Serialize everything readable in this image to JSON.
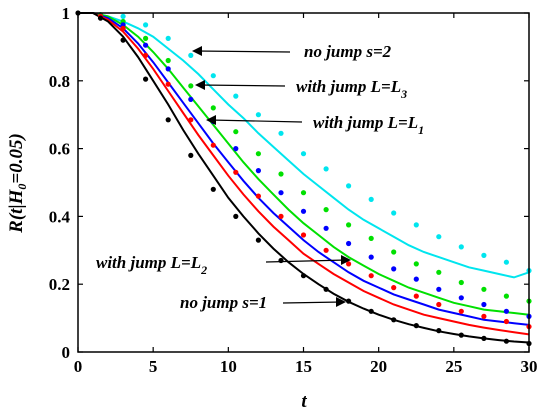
{
  "chart_data": {
    "type": "line",
    "xlabel": "t",
    "ylabel": "R(t|H0=0.05)",
    "ylabel_parts": {
      "main": "R(t|H",
      "sub": "0",
      "rest": "=0.05)"
    },
    "xlim": [
      0,
      30
    ],
    "ylim": [
      0,
      1
    ],
    "xticks": [
      "0",
      "5",
      "10",
      "15",
      "20",
      "25",
      "30"
    ],
    "yticks": [
      "0",
      "0.2",
      "0.4",
      "0.6",
      "0.8",
      "1"
    ],
    "grid": false,
    "series": [
      {
        "color": "#00e5ee",
        "line": [
          [
            0,
            1
          ],
          [
            1,
            1
          ],
          [
            2,
            0.99
          ],
          [
            3,
            0.975
          ],
          [
            4,
            0.955
          ],
          [
            5,
            0.93
          ],
          [
            6,
            0.895
          ],
          [
            7,
            0.86
          ],
          [
            8,
            0.82
          ],
          [
            9,
            0.775
          ],
          [
            10,
            0.73
          ],
          [
            11,
            0.69
          ],
          [
            12,
            0.645
          ],
          [
            13,
            0.605
          ],
          [
            14,
            0.565
          ],
          [
            15,
            0.525
          ],
          [
            16,
            0.49
          ],
          [
            17,
            0.455
          ],
          [
            18,
            0.42
          ],
          [
            19,
            0.39
          ],
          [
            20,
            0.365
          ],
          [
            21,
            0.34
          ],
          [
            22,
            0.315
          ],
          [
            23,
            0.295
          ],
          [
            24,
            0.28
          ],
          [
            25,
            0.265
          ],
          [
            26,
            0.25
          ],
          [
            27,
            0.24
          ],
          [
            28,
            0.23
          ],
          [
            29,
            0.22
          ],
          [
            30,
            0.235
          ]
        ],
        "points": [
          [
            1.5,
            0.995
          ],
          [
            3,
            0.99
          ],
          [
            4.5,
            0.965
          ],
          [
            6,
            0.925
          ],
          [
            7.5,
            0.875
          ],
          [
            9,
            0.815
          ],
          [
            10.5,
            0.755
          ],
          [
            12,
            0.7
          ],
          [
            13.5,
            0.645
          ],
          [
            15,
            0.585
          ],
          [
            16.5,
            0.54
          ],
          [
            18,
            0.49
          ],
          [
            19.5,
            0.45
          ],
          [
            21,
            0.41
          ],
          [
            22.5,
            0.375
          ],
          [
            24,
            0.34
          ],
          [
            25.5,
            0.31
          ],
          [
            27,
            0.285
          ],
          [
            28.5,
            0.265
          ],
          [
            30,
            0.24
          ]
        ]
      },
      {
        "color": "#00e000",
        "line": [
          [
            0,
            1
          ],
          [
            1,
            1
          ],
          [
            2,
            0.99
          ],
          [
            3,
            0.965
          ],
          [
            4,
            0.93
          ],
          [
            5,
            0.885
          ],
          [
            6,
            0.835
          ],
          [
            7,
            0.78
          ],
          [
            8,
            0.725
          ],
          [
            9,
            0.67
          ],
          [
            10,
            0.615
          ],
          [
            11,
            0.56
          ],
          [
            12,
            0.51
          ],
          [
            13,
            0.465
          ],
          [
            14,
            0.42
          ],
          [
            15,
            0.38
          ],
          [
            16,
            0.345
          ],
          [
            17,
            0.31
          ],
          [
            18,
            0.28
          ],
          [
            19,
            0.255
          ],
          [
            20,
            0.23
          ],
          [
            21,
            0.21
          ],
          [
            22,
            0.19
          ],
          [
            23,
            0.175
          ],
          [
            24,
            0.16
          ],
          [
            25,
            0.145
          ],
          [
            26,
            0.135
          ],
          [
            27,
            0.125
          ],
          [
            28,
            0.12
          ],
          [
            29,
            0.115
          ],
          [
            30,
            0.11
          ]
        ],
        "points": [
          [
            1.5,
            0.995
          ],
          [
            3,
            0.975
          ],
          [
            4.5,
            0.925
          ],
          [
            6,
            0.86
          ],
          [
            7.5,
            0.785
          ],
          [
            9,
            0.72
          ],
          [
            10.5,
            0.65
          ],
          [
            12,
            0.585
          ],
          [
            13.5,
            0.525
          ],
          [
            15,
            0.47
          ],
          [
            16.5,
            0.42
          ],
          [
            18,
            0.375
          ],
          [
            19.5,
            0.335
          ],
          [
            21,
            0.295
          ],
          [
            22.5,
            0.26
          ],
          [
            24,
            0.235
          ],
          [
            25.5,
            0.205
          ],
          [
            27,
            0.185
          ],
          [
            28.5,
            0.165
          ],
          [
            30,
            0.15
          ]
        ]
      },
      {
        "color": "#0000ff",
        "line": [
          [
            0,
            1
          ],
          [
            1,
            1
          ],
          [
            2,
            0.985
          ],
          [
            3,
            0.955
          ],
          [
            4,
            0.91
          ],
          [
            5,
            0.855
          ],
          [
            6,
            0.795
          ],
          [
            7,
            0.735
          ],
          [
            8,
            0.675
          ],
          [
            9,
            0.615
          ],
          [
            10,
            0.56
          ],
          [
            11,
            0.505
          ],
          [
            12,
            0.455
          ],
          [
            13,
            0.41
          ],
          [
            14,
            0.37
          ],
          [
            15,
            0.33
          ],
          [
            16,
            0.295
          ],
          [
            17,
            0.265
          ],
          [
            18,
            0.235
          ],
          [
            19,
            0.21
          ],
          [
            20,
            0.19
          ],
          [
            21,
            0.17
          ],
          [
            22,
            0.155
          ],
          [
            23,
            0.14
          ],
          [
            24,
            0.125
          ],
          [
            25,
            0.115
          ],
          [
            26,
            0.105
          ],
          [
            27,
            0.095
          ],
          [
            28,
            0.09
          ],
          [
            29,
            0.085
          ],
          [
            30,
            0.08
          ]
        ],
        "points": [
          [
            1.5,
            0.99
          ],
          [
            3,
            0.965
          ],
          [
            4.5,
            0.905
          ],
          [
            6,
            0.835
          ],
          [
            7.5,
            0.745
          ],
          [
            9,
            0.68
          ],
          [
            10.5,
            0.6
          ],
          [
            12,
            0.535
          ],
          [
            13.5,
            0.47
          ],
          [
            15,
            0.415
          ],
          [
            16.5,
            0.365
          ],
          [
            18,
            0.32
          ],
          [
            19.5,
            0.28
          ],
          [
            21,
            0.245
          ],
          [
            22.5,
            0.215
          ],
          [
            24,
            0.185
          ],
          [
            25.5,
            0.16
          ],
          [
            27,
            0.14
          ],
          [
            28.5,
            0.12
          ],
          [
            30,
            0.105
          ]
        ]
      },
      {
        "color": "#ff0000",
        "line": [
          [
            0,
            1
          ],
          [
            1,
            1
          ],
          [
            2,
            0.98
          ],
          [
            3,
            0.945
          ],
          [
            4,
            0.895
          ],
          [
            5,
            0.835
          ],
          [
            6,
            0.77
          ],
          [
            7,
            0.705
          ],
          [
            8,
            0.64
          ],
          [
            9,
            0.58
          ],
          [
            10,
            0.52
          ],
          [
            11,
            0.465
          ],
          [
            12,
            0.415
          ],
          [
            13,
            0.37
          ],
          [
            14,
            0.33
          ],
          [
            15,
            0.29
          ],
          [
            16,
            0.26
          ],
          [
            17,
            0.23
          ],
          [
            18,
            0.205
          ],
          [
            19,
            0.18
          ],
          [
            20,
            0.16
          ],
          [
            21,
            0.14
          ],
          [
            22,
            0.125
          ],
          [
            23,
            0.11
          ],
          [
            24,
            0.1
          ],
          [
            25,
            0.09
          ],
          [
            26,
            0.08
          ],
          [
            27,
            0.072
          ],
          [
            28,
            0.065
          ],
          [
            29,
            0.058
          ],
          [
            30,
            0.052
          ]
        ],
        "points": [
          [
            1.5,
            0.99
          ],
          [
            3,
            0.955
          ],
          [
            4.5,
            0.875
          ],
          [
            6,
            0.79
          ],
          [
            7.5,
            0.685
          ],
          [
            9,
            0.61
          ],
          [
            10.5,
            0.53
          ],
          [
            12,
            0.46
          ],
          [
            13.5,
            0.4
          ],
          [
            15,
            0.345
          ],
          [
            16.5,
            0.3
          ],
          [
            18,
            0.26
          ],
          [
            19.5,
            0.225
          ],
          [
            21,
            0.19
          ],
          [
            22.5,
            0.165
          ],
          [
            24,
            0.14
          ],
          [
            25.5,
            0.12
          ],
          [
            27,
            0.105
          ],
          [
            28.5,
            0.09
          ],
          [
            30,
            0.075
          ]
        ]
      },
      {
        "color": "#000000",
        "line": [
          [
            0,
            1
          ],
          [
            1,
            1
          ],
          [
            2,
            0.975
          ],
          [
            3,
            0.93
          ],
          [
            4,
            0.87
          ],
          [
            5,
            0.8
          ],
          [
            6,
            0.73
          ],
          [
            7,
            0.655
          ],
          [
            8,
            0.585
          ],
          [
            9,
            0.52
          ],
          [
            10,
            0.455
          ],
          [
            11,
            0.4
          ],
          [
            12,
            0.35
          ],
          [
            13,
            0.305
          ],
          [
            14,
            0.265
          ],
          [
            15,
            0.23
          ],
          [
            16,
            0.2
          ],
          [
            17,
            0.172
          ],
          [
            18,
            0.148
          ],
          [
            19,
            0.128
          ],
          [
            20,
            0.11
          ],
          [
            21,
            0.095
          ],
          [
            22,
            0.082
          ],
          [
            23,
            0.071
          ],
          [
            24,
            0.061
          ],
          [
            25,
            0.053
          ],
          [
            26,
            0.046
          ],
          [
            27,
            0.04
          ],
          [
            28,
            0.035
          ],
          [
            29,
            0.031
          ],
          [
            30,
            0.028
          ]
        ],
        "points": [
          [
            0,
            1
          ],
          [
            1.5,
            0.985
          ],
          [
            3,
            0.92
          ],
          [
            4.5,
            0.805
          ],
          [
            6,
            0.685
          ],
          [
            7.5,
            0.58
          ],
          [
            9,
            0.48
          ],
          [
            10.5,
            0.4
          ],
          [
            12,
            0.33
          ],
          [
            13.5,
            0.27
          ],
          [
            15,
            0.225
          ],
          [
            16.5,
            0.185
          ],
          [
            18,
            0.15
          ],
          [
            19.5,
            0.12
          ],
          [
            21,
            0.095
          ],
          [
            22.5,
            0.078
          ],
          [
            24,
            0.063
          ],
          [
            25.5,
            0.05
          ],
          [
            27,
            0.04
          ],
          [
            28.5,
            0.032
          ],
          [
            30,
            0.025
          ]
        ]
      }
    ],
    "annotations": [
      {
        "text": "no jump s=2",
        "sub": "",
        "arrow_to": [
          7.6,
          0.875
        ]
      },
      {
        "text": "with jump L=L",
        "sub": "3",
        "arrow_to": [
          7.8,
          0.78
        ]
      },
      {
        "text": "with jump L=L",
        "sub": "1",
        "arrow_to": [
          8.6,
          0.685
        ]
      },
      {
        "text": "with jump L=L",
        "sub": "2",
        "arrow_to": [
          18.6,
          0.28
        ]
      },
      {
        "text": "no jump s=1",
        "sub": "",
        "arrow_to": [
          18.4,
          0.15
        ]
      }
    ]
  }
}
